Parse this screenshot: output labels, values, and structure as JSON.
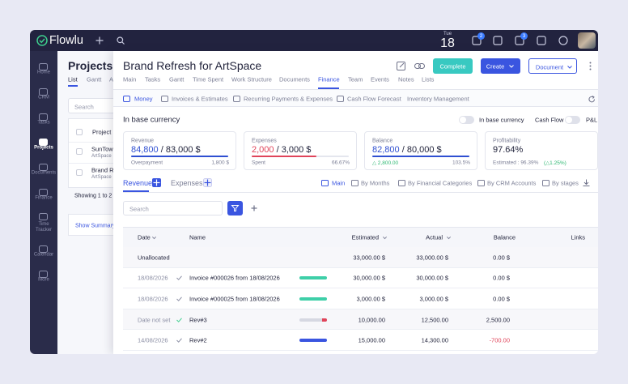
{
  "topbar": {
    "logo": "Flowlu",
    "weekday": "Tue",
    "day": "18",
    "badges": [
      "2",
      "3"
    ]
  },
  "sidebar": {
    "items": [
      {
        "label": "Home"
      },
      {
        "label": "CRM"
      },
      {
        "label": "Tasks"
      },
      {
        "label": "Projects",
        "active": true
      },
      {
        "label": "Documents"
      },
      {
        "label": "Finance"
      },
      {
        "label": "Time Tracker"
      },
      {
        "label": "Calendar"
      },
      {
        "label": "More"
      }
    ]
  },
  "projects_panel": {
    "title": "Projects",
    "tabs": [
      {
        "label": "List",
        "active": true
      },
      {
        "label": "Gantt"
      },
      {
        "label": "A"
      }
    ],
    "search": "Search",
    "column": "Project",
    "rows": [
      {
        "name": "SunTown",
        "client": "ArtSpace"
      },
      {
        "name": "Brand Re",
        "client": "ArtSpace"
      }
    ],
    "footer": "Showing 1 to 2",
    "summary": "Show Summary"
  },
  "detail": {
    "title": "Brand Refresh for ArtSpace",
    "buttons": {
      "complete": "Complete",
      "create": "Create",
      "document": "Document"
    },
    "tabs": [
      {
        "label": "Main"
      },
      {
        "label": "Tasks"
      },
      {
        "label": "Gantt"
      },
      {
        "label": "Time Spent"
      },
      {
        "label": "Work Structure"
      },
      {
        "label": "Documents"
      },
      {
        "label": "Finance",
        "active": true
      },
      {
        "label": "Team"
      },
      {
        "label": "Events"
      },
      {
        "label": "Notes"
      },
      {
        "label": "Lists"
      }
    ],
    "subtabs": [
      {
        "label": "Money",
        "active": true
      },
      {
        "label": "Invoices & Estimates"
      },
      {
        "label": "Recurring Payments & Expenses"
      },
      {
        "label": "Cash Flow Forecast"
      },
      {
        "label": "Inventory Management"
      }
    ],
    "heading": "In base currency",
    "toggles": [
      "In base currency",
      "Cash Flow",
      "P&L"
    ],
    "cards": [
      {
        "label": "Revenue",
        "value": "84,800",
        "total": " / 83,000 $",
        "color": "#2f4fd1",
        "foot_left": "Overpayment",
        "foot_right": "1,800 $"
      },
      {
        "label": "Expenses",
        "value": "2,000",
        "total": " / 3,000 $",
        "color": "#e0445a",
        "foot_left": "Spent",
        "foot_right": "66.67%"
      },
      {
        "label": "Balance",
        "value": "82,800",
        "total": " / 80,000 $",
        "color": "#2f4fd1",
        "foot_left": "△ 2,800.00",
        "foot_right": "103.5%"
      },
      {
        "label": "Profitability",
        "value": "97.64%",
        "color": "#23253d",
        "foot_left": "Estimated : 96.39%",
        "foot_extra": "(△1.25%)"
      }
    ],
    "flow_tabs": [
      {
        "label": "Revenue",
        "active": true
      },
      {
        "label": "Expenses"
      }
    ],
    "views": [
      {
        "label": "Main",
        "active": true
      },
      {
        "label": "By Months"
      },
      {
        "label": "By Financial Categories"
      },
      {
        "label": "By CRM Accounts"
      },
      {
        "label": "By stages"
      }
    ],
    "search": "Search",
    "table": {
      "columns": [
        "Date",
        "Name",
        "Estimated",
        "Actual",
        "Balance",
        "Links"
      ],
      "rows": [
        {
          "date": "Unallocated",
          "estimated": "33,000.00 $",
          "actual": "33,000.00 $",
          "balance": "0.00 $"
        },
        {
          "date": "18/08/2026",
          "name": "Invoice #000026 from 18/08/2026",
          "estimated": "30,000.00 $",
          "actual": "30,000.00 $",
          "balance": "0.00 $",
          "bar_color": "#3ecfa8"
        },
        {
          "date": "18/08/2026",
          "name": "Invoice #000025 from 18/08/2026",
          "estimated": "3,000.00 $",
          "actual": "3,000.00 $",
          "balance": "0.00 $",
          "bar_color": "#3ecfa8"
        },
        {
          "date": "Date not set",
          "name": "Rev#3",
          "estimated": "10,000.00",
          "actual": "12,500.00",
          "balance": "2,500.00",
          "bar_color": "#d6d8e2"
        },
        {
          "date": "14/08/2026",
          "name": "Rev#2",
          "estimated": "15,000.00",
          "actual": "14,300.00",
          "balance": "-700.00",
          "bar_color": "#3a55e0"
        }
      ]
    }
  }
}
